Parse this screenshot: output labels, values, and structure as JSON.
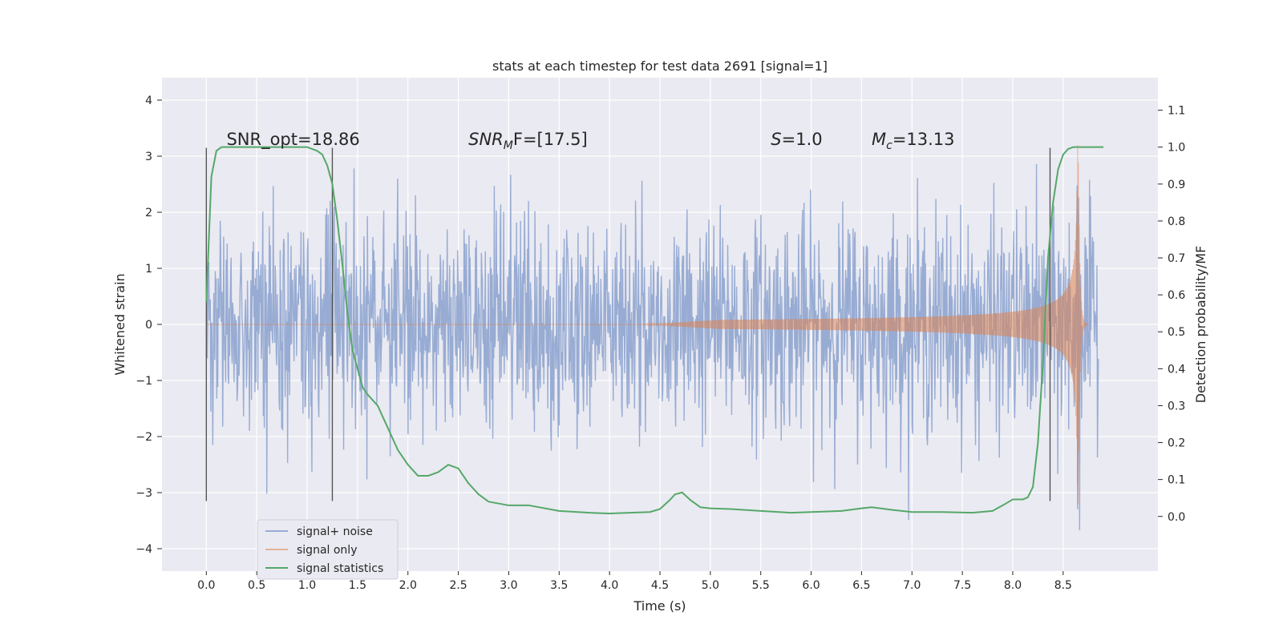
{
  "chart_data": {
    "type": "line",
    "title": "stats at each timestep for test data 2691 [signal=1]",
    "xlabel": "Time (s)",
    "ylabel": "Whitened strain",
    "ylabel_right": "Detection probability/MF",
    "xlim": [
      -0.44,
      9.44
    ],
    "ylim": [
      -4.4,
      4.4
    ],
    "ylim_right": [
      -0.148,
      1.188
    ],
    "x_ticks": [
      "0.0",
      "0.5",
      "1.0",
      "1.5",
      "2.0",
      "2.5",
      "3.0",
      "3.5",
      "4.0",
      "4.5",
      "5.0",
      "5.5",
      "6.0",
      "6.5",
      "7.0",
      "7.5",
      "8.0",
      "8.5"
    ],
    "y_ticks": [
      "−4",
      "−3",
      "−2",
      "−1",
      "0",
      "1",
      "2",
      "3",
      "4"
    ],
    "y_right_ticks": [
      "0.0",
      "0.1",
      "0.2",
      "0.3",
      "0.4",
      "0.5",
      "0.6",
      "0.7",
      "0.8",
      "0.9",
      "1.0",
      "1.1"
    ],
    "grid": true,
    "legend_placement": "lower-left",
    "colors": {
      "background": "#eaeaf2",
      "grid": "#ffffff",
      "signal_noise": "#98acd3",
      "signal_only": "#dd8452",
      "statistics": "#55a868",
      "vline": "#555555"
    },
    "annotations": [
      {
        "text": "SNR_opt=18.86",
        "x": 0.2,
        "y": 3.2
      },
      {
        "main": "SNR",
        "sub": "M",
        "rest": "F=[17.5]",
        "x": 2.6,
        "y": 3.2
      },
      {
        "main": "S",
        "rest": "=1.0",
        "x": 5.6,
        "y": 3.2
      },
      {
        "main": "M",
        "sub": "c",
        "rest": "=13.13",
        "x": 6.6,
        "y": 3.2
      }
    ],
    "vertical_lines": [
      0.0,
      1.25,
      8.37
    ],
    "vertical_line_range": [
      -3.15,
      3.15
    ],
    "series": [
      {
        "name": "signal+ noise",
        "t_range": [
          0.0,
          8.85
        ],
        "typical_envelope": 1.25,
        "peak_range": [
          -4.0,
          4.0
        ]
      },
      {
        "name": "signal only",
        "t_range": [
          0.0,
          8.75
        ],
        "chirp_start": 4.3,
        "chirp_peak_time": 8.65,
        "peak_amplitude": 3.2
      },
      {
        "name": "signal statistics",
        "x": [
          0.0,
          0.05,
          0.1,
          0.15,
          0.2,
          0.3,
          0.5,
          0.8,
          1.0,
          1.1,
          1.15,
          1.2,
          1.25,
          1.3,
          1.35,
          1.4,
          1.45,
          1.5,
          1.55,
          1.6,
          1.7,
          1.8,
          1.9,
          2.0,
          2.1,
          2.2,
          2.3,
          2.4,
          2.5,
          2.6,
          2.7,
          2.8,
          3.0,
          3.2,
          3.5,
          3.8,
          4.0,
          4.2,
          4.4,
          4.5,
          4.6,
          4.65,
          4.72,
          4.8,
          4.9,
          5.0,
          5.2,
          5.5,
          5.8,
          6.0,
          6.3,
          6.5,
          6.6,
          6.8,
          7.0,
          7.3,
          7.6,
          7.8,
          7.9,
          8.0,
          8.1,
          8.15,
          8.2,
          8.25,
          8.3,
          8.35,
          8.4,
          8.45,
          8.5,
          8.55,
          8.6,
          8.7,
          8.8,
          8.9
        ],
        "values": [
          0.58,
          0.92,
          0.99,
          1.0,
          1.0,
          1.0,
          1.0,
          1.0,
          1.0,
          0.99,
          0.98,
          0.95,
          0.9,
          0.8,
          0.68,
          0.55,
          0.45,
          0.4,
          0.35,
          0.33,
          0.3,
          0.24,
          0.18,
          0.14,
          0.11,
          0.11,
          0.12,
          0.14,
          0.13,
          0.09,
          0.06,
          0.04,
          0.03,
          0.03,
          0.015,
          0.01,
          0.008,
          0.01,
          0.012,
          0.02,
          0.045,
          0.06,
          0.065,
          0.045,
          0.025,
          0.022,
          0.02,
          0.015,
          0.01,
          0.012,
          0.015,
          0.022,
          0.025,
          0.018,
          0.012,
          0.012,
          0.01,
          0.015,
          0.03,
          0.046,
          0.046,
          0.052,
          0.08,
          0.2,
          0.42,
          0.7,
          0.85,
          0.94,
          0.98,
          0.995,
          1.0,
          1.0,
          1.0,
          1.0
        ]
      }
    ]
  }
}
